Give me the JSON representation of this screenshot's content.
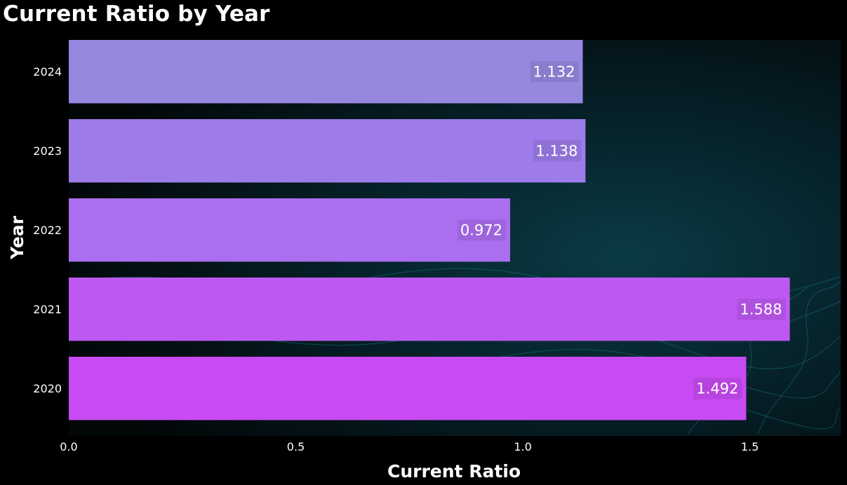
{
  "chart_data": {
    "type": "bar",
    "orientation": "horizontal",
    "title": "Current Ratio by Year",
    "xlabel": "Current Ratio",
    "ylabel": "Year",
    "categories": [
      "2024",
      "2023",
      "2022",
      "2021",
      "2020"
    ],
    "values": [
      1.132,
      1.138,
      0.972,
      1.588,
      1.492
    ],
    "data_labels": [
      "1.132",
      "1.138",
      "0.972",
      "1.588",
      "1.492"
    ],
    "bar_colors": [
      "#9687df",
      "#9d7cea",
      "#ab6ef0",
      "#bd58f1",
      "#c84af2"
    ],
    "xlim": [
      0,
      1.7
    ],
    "x_ticks": [
      0,
      0.5,
      1,
      1.5
    ],
    "x_tick_labels": [
      "0.0",
      "0.5",
      "1.0",
      "1.5"
    ],
    "grid": false,
    "legend": "none",
    "background_color": "#000000"
  }
}
